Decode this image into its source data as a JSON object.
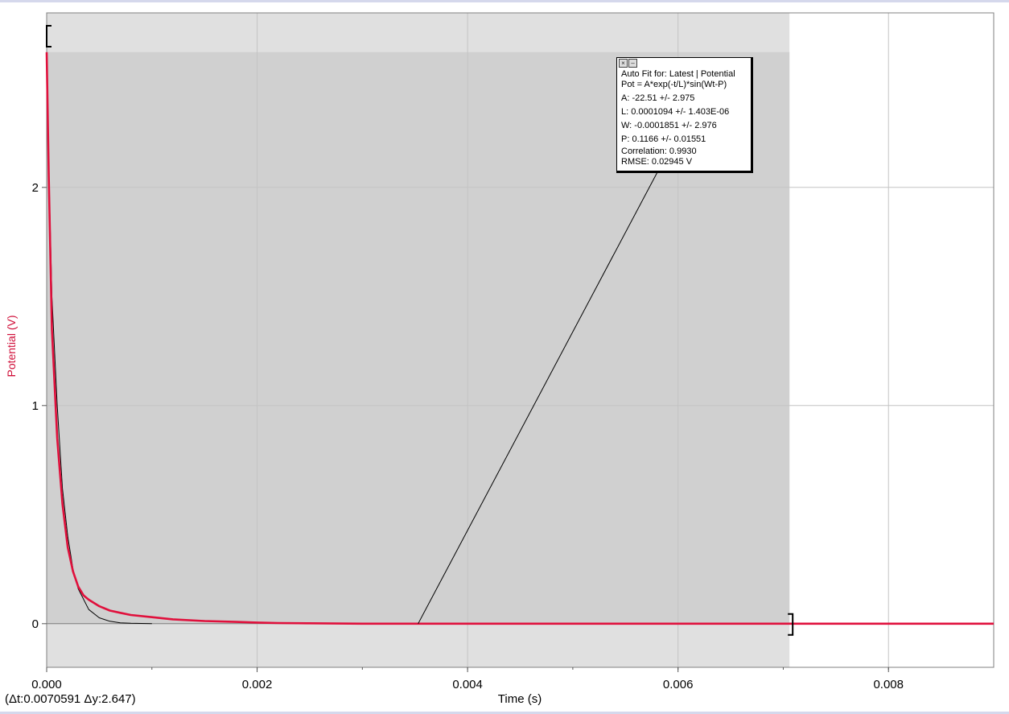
{
  "chart_data": {
    "type": "line",
    "xlabel": "Time (s)",
    "ylabel": "Potential (V)",
    "xlim": [
      0.0,
      0.009
    ],
    "ylim": [
      -0.2,
      2.8
    ],
    "x_ticks": [
      "0.000",
      "0.002",
      "0.004",
      "0.006",
      "0.008"
    ],
    "x_tick_values": [
      0.0,
      0.002,
      0.004,
      0.006,
      0.008
    ],
    "y_ticks": [
      "0",
      "1",
      "2"
    ],
    "y_tick_values": [
      0,
      1,
      2
    ],
    "grid": true,
    "selection": {
      "t_start": 0.0,
      "t_end": 0.0070591
    },
    "series": [
      {
        "color": "#e0103c",
        "x": [
          0.0,
          2e-05,
          5e-05,
          0.0001,
          0.00015,
          0.0002,
          0.00025,
          0.0003,
          0.00035,
          0.0004,
          0.0005,
          0.0006,
          0.0007,
          0.0008,
          0.001,
          0.0012,
          0.0015,
          0.0018,
          0.002,
          0.0022,
          0.0025,
          0.003,
          0.0035,
          0.004,
          0.0045,
          0.005,
          0.0055,
          0.006,
          0.0065,
          0.007,
          0.0075,
          0.008,
          0.0085,
          0.009
        ],
        "y": [
          2.62,
          2.05,
          1.35,
          0.85,
          0.55,
          0.35,
          0.24,
          0.17,
          0.13,
          0.11,
          0.08,
          0.06,
          0.05,
          0.04,
          0.03,
          0.02,
          0.012,
          0.008,
          0.005,
          0.003,
          0.002,
          0.0,
          0.0,
          0.0,
          0.0,
          0.0,
          0.0,
          0.0,
          0.0,
          0.0,
          0.0,
          0.0,
          0.0,
          0.0
        ]
      },
      {
        "color": "#000000",
        "x": [
          0.0,
          2e-05,
          5e-05,
          0.0001,
          0.00015,
          0.0002,
          0.00025,
          0.0003,
          0.0004,
          0.0005,
          0.0006,
          0.0007,
          0.0008,
          0.001
        ],
        "y": [
          2.55,
          2.1,
          1.5,
          1.0,
          0.62,
          0.4,
          0.25,
          0.16,
          0.065,
          0.027,
          0.011,
          0.004,
          0.002,
          0.0
        ]
      }
    ]
  },
  "fit": {
    "title": "Auto Fit for: Latest | Potential",
    "equation": "Pot = A*exp(-t/L)*sin(Wt-P)",
    "a": "A: -22.51 +/- 2.975",
    "l": "L: 0.0001094 +/- 1.403E-06",
    "w": "W: -0.0001851 +/- 2.976",
    "p": "P: 0.1166 +/- 0.01551",
    "correlation": "Correlation: 0.9930",
    "rmse": "RMSE: 0.02945 V"
  },
  "readout": "(Δt:0.0070591  Δy:2.647)",
  "icons": {
    "close": "close-icon",
    "minimize": "minimize-icon"
  }
}
